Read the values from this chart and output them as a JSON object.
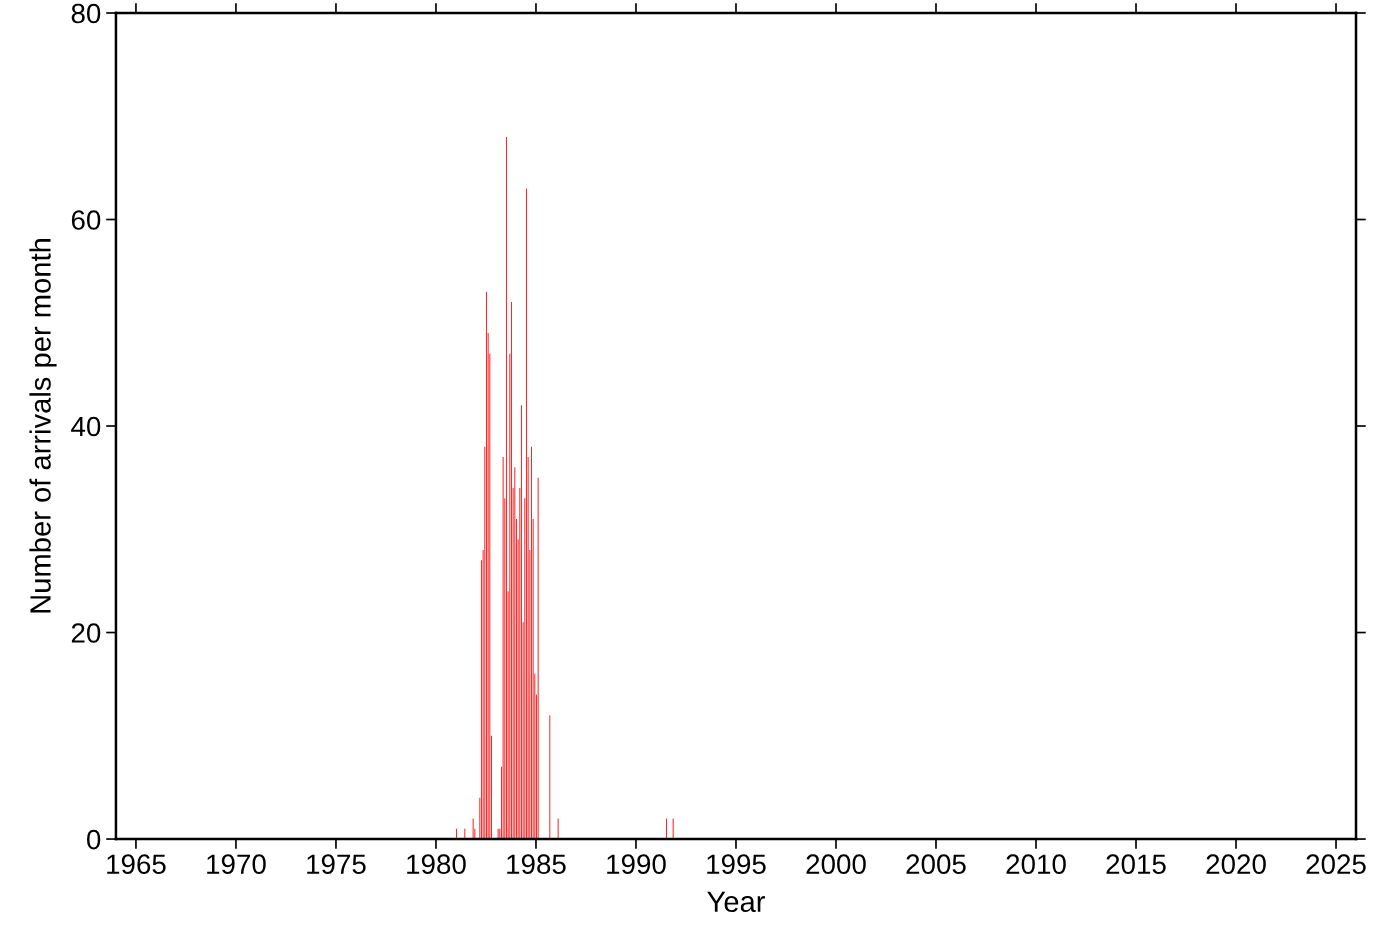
{
  "chart_data": {
    "type": "histogram",
    "xlabel": "Year",
    "ylabel": "Number of arrivals per month",
    "color": "#ff2020",
    "bins": [
      1981,
      1981.083,
      1981.167,
      1981.25,
      1981.333,
      1981.417,
      1981.5,
      1981.583,
      1981.667,
      1981.75,
      1981.833,
      1981.917,
      1982,
      1982.083,
      1982.167,
      1982.25,
      1982.333,
      1982.417,
      1982.5,
      1982.583,
      1982.667,
      1982.75,
      1982.833,
      1982.917,
      1983,
      1983.083,
      1983.167,
      1983.25,
      1983.333,
      1983.417,
      1983.5,
      1983.583,
      1983.667,
      1983.75,
      1983.833,
      1983.917,
      1984,
      1984.083,
      1984.167,
      1984.25,
      1984.333,
      1984.417,
      1984.5,
      1984.583,
      1984.667,
      1984.75,
      1984.833,
      1984.917,
      1985,
      1985.083,
      1985.167,
      1985.25,
      1985.333,
      1985.417,
      1985.5,
      1985.583,
      1985.667,
      1985.75,
      1985.833,
      1985.917,
      1986,
      1986.083,
      1986.167,
      1986.25,
      1986.333,
      1986.417,
      1986.5,
      1986.583,
      1986.667,
      1986.75,
      1986.833,
      1986.917,
      1987,
      1987.083,
      1987.167,
      1987.25,
      1987.333,
      1987.417,
      1987.5,
      1987.583,
      1987.667,
      1987.75,
      1987.833,
      1987.917,
      1988,
      1988.083,
      1988.167,
      1988.25,
      1988.333,
      1988.417,
      1988.5,
      1988.583,
      1988.667,
      1988.75,
      1988.833,
      1988.917,
      1989,
      1989.083,
      1989.167,
      1989.25,
      1989.333,
      1989.417,
      1989.5,
      1989.583,
      1989.667,
      1989.75,
      1989.833,
      1989.917,
      1990,
      1990.083,
      1990.167,
      1990.25,
      1990.333,
      1990.417,
      1990.5,
      1990.583,
      1990.667,
      1990.75,
      1990.833,
      1990.917,
      1991,
      1991.083,
      1991.167,
      1991.25,
      1991.333,
      1991.417,
      1991.5,
      1991.583,
      1991.667,
      1991.75,
      1991.833,
      1991.917,
      1992
    ],
    "values": [
      1,
      0,
      0,
      0,
      0,
      1,
      0,
      0,
      0,
      0,
      2,
      1,
      0,
      0,
      4,
      27,
      28,
      38,
      53,
      49,
      47,
      10,
      0,
      0,
      0,
      1,
      1,
      7,
      37,
      33,
      68,
      24,
      47,
      52,
      34,
      36,
      31,
      29,
      34,
      42,
      21,
      33,
      63,
      37,
      28,
      38,
      31,
      16,
      14,
      35,
      0,
      0,
      0,
      0,
      0,
      0,
      12,
      0,
      0,
      0,
      0,
      2,
      0,
      0,
      0,
      0,
      0,
      0,
      0,
      0,
      0,
      0,
      0,
      0,
      0,
      0,
      0,
      0,
      0,
      0,
      0,
      0,
      0,
      0,
      0,
      0,
      0,
      0,
      0,
      0,
      0,
      0,
      0,
      0,
      0,
      0,
      0,
      0,
      0,
      0,
      0,
      0,
      0,
      0,
      0,
      0,
      0,
      0,
      0,
      0,
      0,
      0,
      0,
      0,
      0,
      0,
      0,
      0,
      0,
      0,
      0,
      0,
      0,
      0,
      0,
      0,
      2,
      0,
      0,
      0,
      2,
      0
    ],
    "xlim": [
      1964,
      2026
    ],
    "xticks": [
      1965,
      1970,
      1975,
      1980,
      1985,
      1990,
      1995,
      2000,
      2005,
      2010,
      2015,
      2020,
      2025
    ],
    "ylim": [
      0,
      80
    ],
    "yticks": [
      0,
      20,
      40,
      60,
      80
    ],
    "grid": false
  }
}
